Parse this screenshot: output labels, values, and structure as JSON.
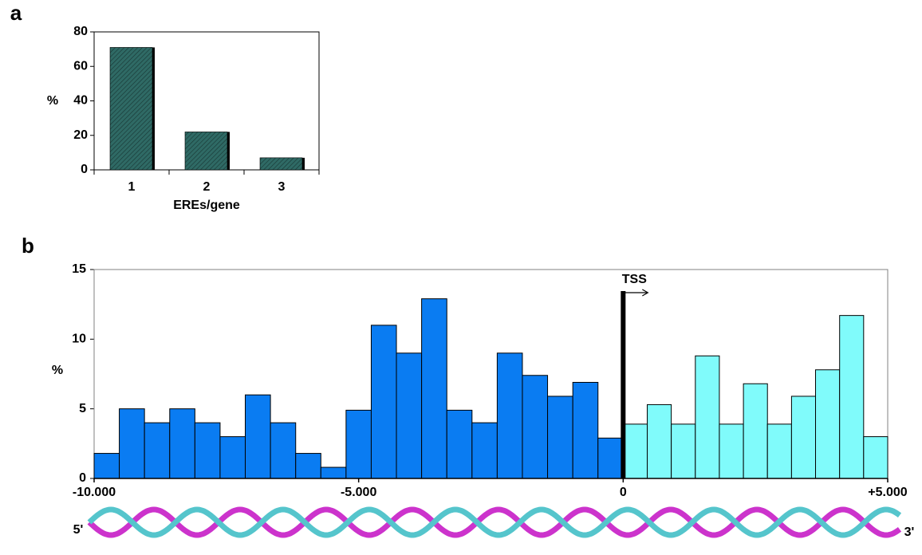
{
  "chart_data": [
    {
      "panel": "a",
      "type": "bar",
      "ylabel": "%",
      "xlabel": "EREs/gene",
      "categories": [
        "1",
        "2",
        "3"
      ],
      "values": [
        71,
        22,
        7
      ],
      "color": "#2f6a65",
      "ylim": [
        0,
        80
      ],
      "yticks": [
        0,
        20,
        40,
        60,
        80
      ]
    },
    {
      "panel": "b",
      "type": "histogram",
      "ylabel": "%",
      "annotation": "TSS",
      "strand_labels": [
        "5'",
        "3'"
      ],
      "series": [
        {
          "color": "#0a7cf2",
          "bins": [
            -10000,
            -9524,
            -9048,
            -8571,
            -8095,
            -7619,
            -7143,
            -6667,
            -6190,
            -5714,
            -5238,
            -4762,
            -4286,
            -3810,
            -3333,
            -2857,
            -2381,
            -1905,
            -1429,
            -952,
            -476,
            0
          ],
          "values": [
            1.8,
            5,
            4,
            5,
            4,
            3,
            6,
            4,
            1.8,
            0.8,
            4.9,
            11,
            9,
            12.9,
            4.9,
            4,
            9,
            7.4,
            5.9,
            6.9,
            2.9
          ]
        },
        {
          "color": "#80fbfb",
          "bins": [
            0,
            455,
            909,
            1364,
            1818,
            2273,
            2727,
            3182,
            3636,
            4091,
            4545,
            5000
          ],
          "values": [
            3.9,
            5.3,
            3.9,
            8.8,
            3.9,
            6.8,
            3.9,
            5.9,
            7.8,
            11.7,
            3
          ]
        }
      ],
      "xlim": [
        -10000,
        5000
      ],
      "xticks": [
        {
          "value": -10000,
          "label": "-10.000"
        },
        {
          "value": -5000,
          "label": "-5.000"
        },
        0,
        {
          "value": 5000,
          "label": "+5.000"
        }
      ],
      "ylim": [
        0,
        15
      ],
      "yticks": [
        0,
        5,
        10,
        15
      ]
    }
  ]
}
